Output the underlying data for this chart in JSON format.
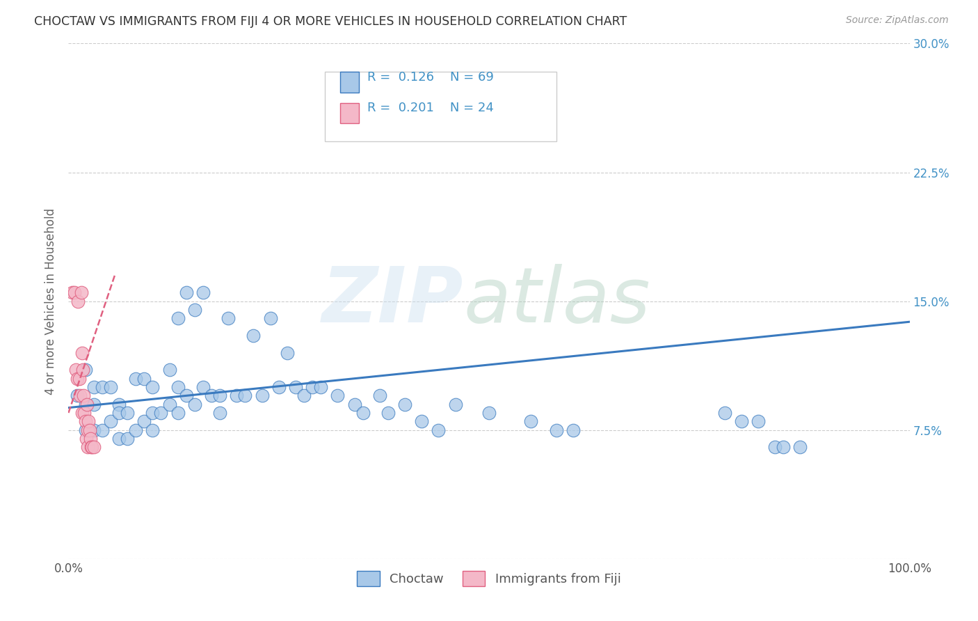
{
  "title": "CHOCTAW VS IMMIGRANTS FROM FIJI 4 OR MORE VEHICLES IN HOUSEHOLD CORRELATION CHART",
  "source": "Source: ZipAtlas.com",
  "ylabel": "4 or more Vehicles in Household",
  "xlim": [
    0,
    1.0
  ],
  "ylim": [
    0,
    0.3
  ],
  "blue_color": "#a8c8e8",
  "pink_color": "#f4b8c8",
  "trend_blue": "#3a7abf",
  "trend_pink": "#e06080",
  "text_color": "#4292c6",
  "blue_x": [
    0.01,
    0.02,
    0.02,
    0.02,
    0.03,
    0.03,
    0.03,
    0.04,
    0.04,
    0.05,
    0.05,
    0.06,
    0.06,
    0.06,
    0.07,
    0.07,
    0.08,
    0.08,
    0.09,
    0.09,
    0.1,
    0.1,
    0.1,
    0.11,
    0.12,
    0.12,
    0.13,
    0.13,
    0.13,
    0.14,
    0.14,
    0.15,
    0.15,
    0.16,
    0.16,
    0.17,
    0.18,
    0.18,
    0.19,
    0.2,
    0.21,
    0.22,
    0.23,
    0.24,
    0.25,
    0.26,
    0.27,
    0.28,
    0.29,
    0.3,
    0.32,
    0.34,
    0.35,
    0.37,
    0.38,
    0.4,
    0.42,
    0.44,
    0.46,
    0.5,
    0.55,
    0.58,
    0.6,
    0.78,
    0.8,
    0.82,
    0.84,
    0.85,
    0.87
  ],
  "blue_y": [
    0.095,
    0.11,
    0.09,
    0.075,
    0.09,
    0.1,
    0.075,
    0.1,
    0.075,
    0.1,
    0.08,
    0.09,
    0.085,
    0.07,
    0.085,
    0.07,
    0.105,
    0.075,
    0.105,
    0.08,
    0.1,
    0.085,
    0.075,
    0.085,
    0.11,
    0.09,
    0.14,
    0.1,
    0.085,
    0.155,
    0.095,
    0.145,
    0.09,
    0.155,
    0.1,
    0.095,
    0.095,
    0.085,
    0.14,
    0.095,
    0.095,
    0.13,
    0.095,
    0.14,
    0.1,
    0.12,
    0.1,
    0.095,
    0.1,
    0.1,
    0.095,
    0.09,
    0.085,
    0.095,
    0.085,
    0.09,
    0.08,
    0.075,
    0.09,
    0.085,
    0.08,
    0.075,
    0.075,
    0.085,
    0.08,
    0.08,
    0.065,
    0.065,
    0.065
  ],
  "pink_x": [
    0.005,
    0.007,
    0.009,
    0.01,
    0.011,
    0.013,
    0.014,
    0.015,
    0.016,
    0.016,
    0.017,
    0.018,
    0.019,
    0.02,
    0.021,
    0.022,
    0.023,
    0.023,
    0.024,
    0.025,
    0.026,
    0.027,
    0.028,
    0.03
  ],
  "pink_y": [
    0.155,
    0.155,
    0.11,
    0.105,
    0.15,
    0.105,
    0.095,
    0.155,
    0.12,
    0.085,
    0.11,
    0.095,
    0.085,
    0.08,
    0.07,
    0.09,
    0.075,
    0.065,
    0.08,
    0.075,
    0.07,
    0.065,
    0.065,
    0.065
  ],
  "blue_trend_x0": 0.0,
  "blue_trend_y0": 0.088,
  "blue_trend_x1": 1.0,
  "blue_trend_y1": 0.138,
  "pink_trend_x0": 0.0,
  "pink_trend_y0": 0.085,
  "pink_trend_x1": 0.055,
  "pink_trend_y1": 0.165
}
